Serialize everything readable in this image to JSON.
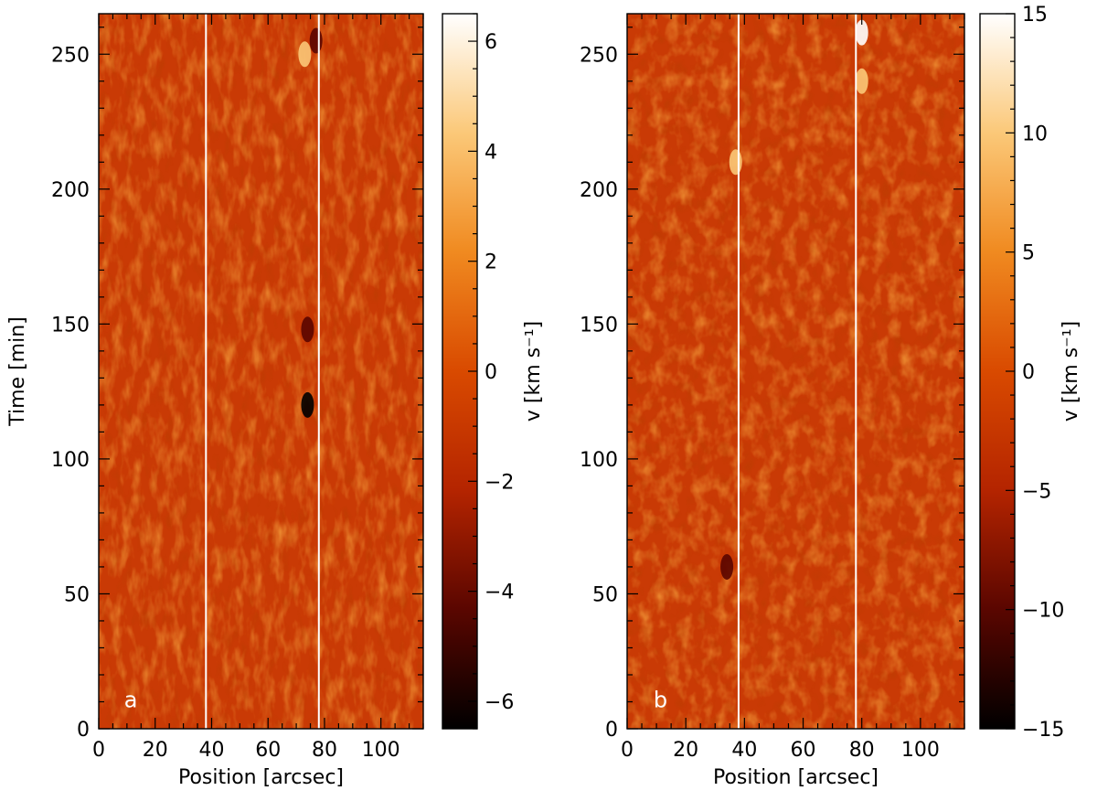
{
  "chart_data": [
    {
      "type": "heatmap",
      "panel_label": "a",
      "xlabel": "Position [arcsec]",
      "ylabel": "Time [min]",
      "xlim": [
        0,
        115
      ],
      "ylim": [
        0,
        265
      ],
      "xticks": [
        0,
        20,
        40,
        60,
        80,
        100
      ],
      "xtick_labels": [
        "0",
        "20",
        "40",
        "60",
        "80",
        "100"
      ],
      "yticks": [
        0,
        50,
        100,
        150,
        200,
        250
      ],
      "ytick_labels": [
        "0",
        "50",
        "100",
        "150",
        "200",
        "250"
      ],
      "vertical_lines_x": [
        38,
        78
      ],
      "colorbar": {
        "label": "v [km s⁻¹]",
        "range": [
          -6.5,
          6.5
        ],
        "ticks": [
          -6,
          -4,
          -2,
          0,
          2,
          4,
          6
        ],
        "tick_labels": [
          "−6",
          "−4",
          "−2",
          "0",
          "2",
          "4",
          "6"
        ],
        "colormap": [
          "#000000",
          "#5a0600",
          "#b42400",
          "#d94a00",
          "#f08a20",
          "#fbc878",
          "#ffffff"
        ]
      },
      "features": [
        {
          "x": 74,
          "y": 120,
          "v": -6
        },
        {
          "x": 74,
          "y": 148,
          "v": -5
        },
        {
          "x": 77,
          "y": 255,
          "v": -5
        },
        {
          "x": 73,
          "y": 250,
          "v": 5
        }
      ]
    },
    {
      "type": "heatmap",
      "panel_label": "b",
      "xlabel": "Position [arcsec]",
      "ylabel": "",
      "xlim": [
        0,
        115
      ],
      "ylim": [
        0,
        265
      ],
      "xticks": [
        0,
        20,
        40,
        60,
        80,
        100
      ],
      "xtick_labels": [
        "0",
        "20",
        "40",
        "60",
        "80",
        "100"
      ],
      "yticks": [
        0,
        50,
        100,
        150,
        200,
        250
      ],
      "ytick_labels": [
        "0",
        "50",
        "100",
        "150",
        "200",
        "250"
      ],
      "vertical_lines_x": [
        38,
        78
      ],
      "colorbar": {
        "label": "v [km s⁻¹]",
        "range": [
          -15,
          15
        ],
        "ticks": [
          -15,
          -10,
          -5,
          0,
          5,
          10,
          15
        ],
        "tick_labels": [
          "−15",
          "−10",
          "−5",
          "0",
          "5",
          "10",
          "15"
        ],
        "colormap": [
          "#000000",
          "#5a0600",
          "#b42400",
          "#d94a00",
          "#f08a20",
          "#fbc878",
          "#ffffff"
        ]
      },
      "features": [
        {
          "x": 80,
          "y": 258,
          "v": 14
        },
        {
          "x": 80,
          "y": 240,
          "v": 10
        },
        {
          "x": 37,
          "y": 210,
          "v": 12
        },
        {
          "x": 34,
          "y": 60,
          "v": -10
        }
      ]
    }
  ]
}
